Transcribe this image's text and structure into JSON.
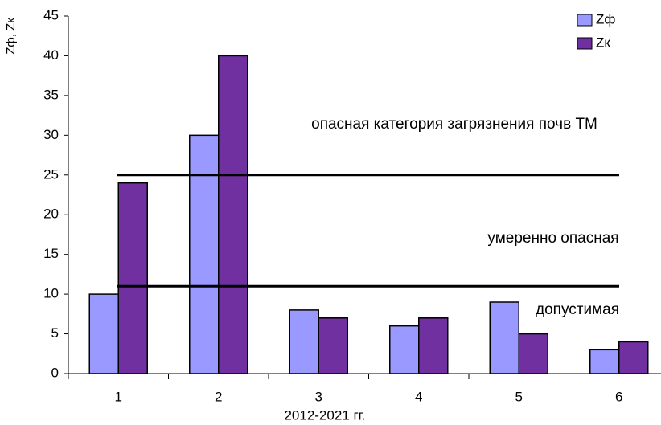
{
  "chart_data": {
    "type": "bar",
    "ylabel": "Zф, Zк",
    "xlabel": "2012-2021 гг.",
    "categories": [
      "1",
      "2",
      "3",
      "4",
      "5",
      "6"
    ],
    "series": [
      {
        "name": "Zф",
        "color": "#9999ff",
        "values": [
          10,
          30,
          8,
          6,
          9,
          3
        ]
      },
      {
        "name": "Zк",
        "color": "#7030a0",
        "values": [
          24,
          40,
          7,
          7,
          5,
          4
        ]
      }
    ],
    "ylim": [
      0,
      45
    ],
    "yticks": [
      0,
      5,
      10,
      15,
      20,
      25,
      30,
      35,
      40,
      45
    ],
    "reference_lines": [
      {
        "value": 25
      },
      {
        "value": 11
      }
    ],
    "annotations": [
      "опасная категория загрязнения почв ТМ",
      "умеренно опасная",
      "допустимая"
    ],
    "legend": "upper right"
  }
}
